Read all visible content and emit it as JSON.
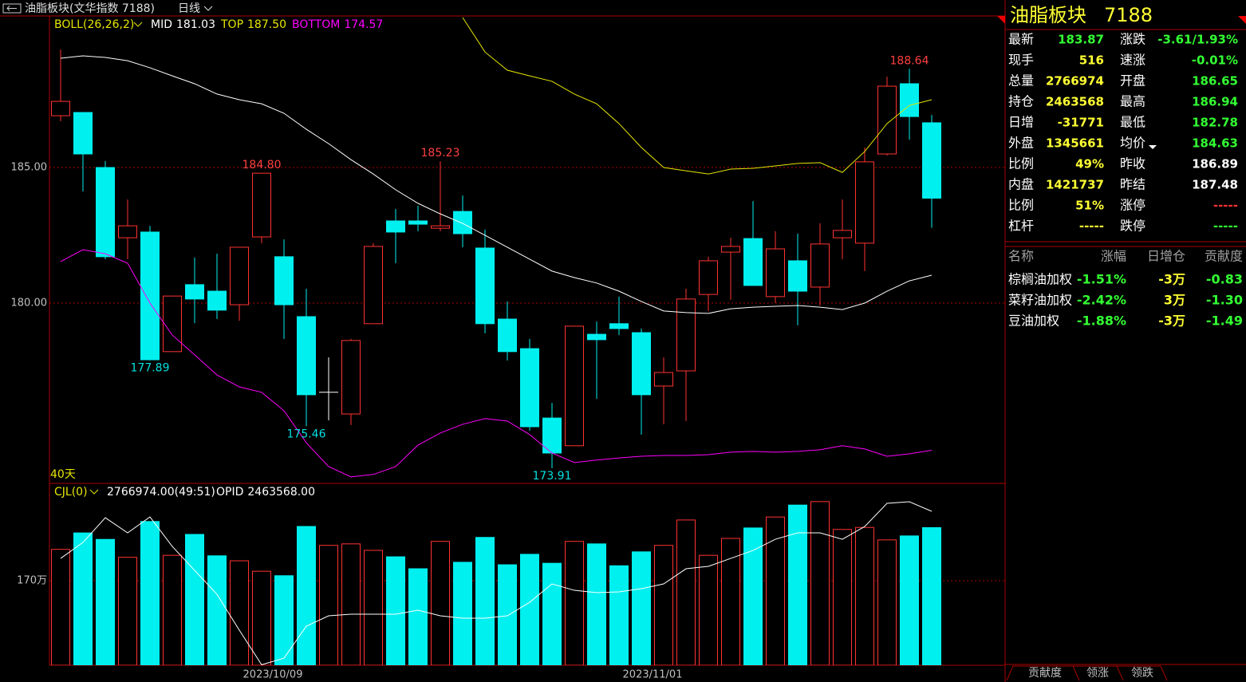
{
  "header": {
    "title": "油脂板块(文华指数 7188)",
    "period": "日线"
  },
  "chart_data": [
    {
      "type": "candlestick",
      "indicator": "BOLL(26,26,2)",
      "period_label": "40天",
      "open": [
        186.91,
        187.03,
        185.0,
        182.41,
        182.62,
        178.21,
        180.68,
        180.44,
        179.94,
        182.44,
        181.71,
        179.5,
        176.71,
        175.91,
        179.24,
        183.03,
        183.03,
        182.76,
        183.38,
        182.03,
        179.41,
        178.32,
        175.76,
        174.74,
        178.85,
        179.24,
        178.91,
        176.94,
        177.5,
        180.32,
        181.88,
        182.38,
        180.24,
        181.56,
        180.59,
        182.41,
        182.21,
        185.5,
        188.09,
        186.65
      ],
      "high": [
        189.35,
        187.03,
        185.24,
        183.82,
        182.85,
        180.26,
        181.68,
        181.82,
        182.06,
        184.8,
        182.35,
        180.53,
        178.0,
        178.68,
        182.21,
        183.47,
        183.59,
        185.23,
        183.97,
        182.71,
        180.06,
        178.68,
        176.32,
        179.15,
        179.32,
        180.24,
        179.06,
        178.0,
        180.53,
        181.71,
        182.41,
        183.76,
        182.65,
        182.56,
        182.94,
        183.82,
        185.74,
        188.35,
        188.64,
        186.94
      ],
      "low": [
        186.71,
        184.12,
        181.62,
        181.62,
        177.89,
        178.21,
        179.26,
        179.41,
        179.35,
        182.21,
        178.68,
        175.46,
        175.68,
        175.5,
        179.24,
        181.47,
        182.65,
        182.65,
        182.06,
        178.88,
        177.88,
        175.29,
        173.91,
        174.74,
        176.47,
        178.82,
        175.15,
        175.53,
        175.65,
        179.71,
        180.12,
        180.65,
        180.0,
        179.18,
        179.91,
        181.62,
        181.18,
        185.44,
        186.03,
        182.78
      ],
      "close": [
        187.44,
        185.5,
        181.71,
        182.85,
        177.91,
        180.26,
        180.15,
        179.74,
        182.06,
        184.79,
        179.94,
        176.62,
        176.71,
        178.62,
        182.09,
        182.62,
        182.91,
        182.85,
        182.56,
        179.24,
        178.21,
        175.44,
        174.47,
        179.15,
        178.65,
        179.06,
        176.62,
        177.44,
        180.15,
        181.56,
        182.09,
        180.65,
        182.0,
        180.44,
        182.18,
        182.68,
        185.21,
        188.0,
        186.88,
        183.87
      ],
      "up_color": "#ff3232",
      "down_color": "#00f0f0",
      "flat_color": "#ffffff",
      "series": [
        {
          "name": "MID",
          "legend_label": "181.03",
          "color": "#ffffff",
          "values": [
            189.03,
            189.12,
            189.06,
            188.94,
            188.68,
            188.38,
            188.09,
            187.71,
            187.5,
            187.35,
            187.0,
            186.41,
            185.88,
            185.29,
            184.76,
            184.18,
            183.68,
            183.29,
            182.94,
            182.5,
            182.06,
            181.62,
            181.18,
            180.94,
            180.74,
            180.44,
            180.06,
            179.71,
            179.65,
            179.62,
            179.79,
            179.85,
            179.88,
            179.91,
            179.85,
            179.76,
            180.0,
            180.44,
            180.82,
            181.03
          ]
        },
        {
          "name": "TOP",
          "legend_label": "187.50",
          "color": "#e6e600",
          "values": [
            null,
            null,
            null,
            null,
            null,
            null,
            null,
            null,
            null,
            null,
            null,
            null,
            null,
            null,
            null,
            null,
            null,
            null,
            190.53,
            189.26,
            188.59,
            188.38,
            188.18,
            187.71,
            187.35,
            186.62,
            185.74,
            185.0,
            184.88,
            184.76,
            184.94,
            184.97,
            185.06,
            185.15,
            185.18,
            184.82,
            185.59,
            186.62,
            187.29,
            187.5
          ]
        },
        {
          "name": "BOTTOM",
          "legend_label": "174.57",
          "color": "#ff00ff",
          "values": [
            181.53,
            181.97,
            181.82,
            181.47,
            180.0,
            178.82,
            178.09,
            177.35,
            176.91,
            176.71,
            176.03,
            174.85,
            173.97,
            173.59,
            173.68,
            173.97,
            174.76,
            175.21,
            175.53,
            175.74,
            175.65,
            175.15,
            174.47,
            174.12,
            174.21,
            174.29,
            174.35,
            174.38,
            174.38,
            174.41,
            174.5,
            174.53,
            174.5,
            174.53,
            174.59,
            174.74,
            174.62,
            174.35,
            174.44,
            174.57
          ]
        }
      ],
      "ylim": [
        173.38,
        190.59
      ],
      "yticks": [
        {
          "value": 180,
          "label": "180.00"
        },
        {
          "value": 185,
          "label": "185.00"
        }
      ],
      "grid": true,
      "high_labels": [
        {
          "value": 184.8,
          "label": "184.80"
        },
        {
          "value": 185.23,
          "label": "185.23"
        },
        {
          "value": 188.64,
          "label": "188.64"
        }
      ],
      "low_labels": [
        {
          "value": 177.89,
          "label": "177.89"
        },
        {
          "value": 175.46,
          "label": "175.46"
        },
        {
          "value": 173.91,
          "label": "173.91"
        }
      ]
    },
    {
      "type": "bar",
      "indicator": "CJL(0)",
      "categories": [
        null,
        null,
        null,
        null,
        null,
        null,
        null,
        null,
        null,
        null,
        "2023/10/09",
        null,
        null,
        null,
        null,
        null,
        null,
        null,
        null,
        null,
        null,
        null,
        null,
        null,
        null,
        null,
        null,
        "2023/11/01",
        null,
        null,
        null,
        null,
        null,
        null,
        null,
        null,
        null,
        null,
        null,
        null
      ],
      "series": [
        {
          "legend_label": "2766974.00(49:51)",
          "values": [
            2330000,
            2660000,
            2530000,
            2170000,
            2890000,
            2210000,
            2630000,
            2200000,
            2100000,
            1890000,
            1800000,
            2790000,
            2410000,
            2440000,
            2310000,
            2180000,
            1940000,
            2490000,
            2070000,
            2570000,
            2020000,
            2230000,
            2050000,
            2490000,
            2440000,
            2000000,
            2280000,
            2410000,
            2920000,
            2210000,
            2550000,
            2760000,
            2980000,
            3220000,
            3290000,
            2730000,
            2770000,
            2520000,
            2600000,
            2766974
          ]
        },
        {
          "name": "OPID",
          "legend_label": "2463568.00",
          "type": "line",
          "axis": "y2",
          "color": "#ffffff",
          "values": [
            2375000,
            2405000,
            2451500,
            2423000,
            2453000,
            2397500,
            2352500,
            2307500,
            2240000,
            2175000,
            2187500,
            2247500,
            2267000,
            2270000,
            2270000,
            2270000,
            2277500,
            2267000,
            2262500,
            2262500,
            2267000,
            2292500,
            2327000,
            2315000,
            2310500,
            2312000,
            2318000,
            2327000,
            2355500,
            2360000,
            2375000,
            2390000,
            2411000,
            2423000,
            2423000,
            2411000,
            2435000,
            2478500,
            2481500,
            2463568
          ]
        }
      ],
      "ylim": [
        0,
        3640000
      ],
      "yticks": [
        {
          "value": 1700000,
          "label": "170万"
        }
      ],
      "y2lim": [
        2174068,
        2514568
      ],
      "grid": true
    }
  ],
  "quote": {
    "name": "油脂板块",
    "code": "7188",
    "rows": [
      [
        {
          "label": "最新",
          "value": "183.87",
          "color": "#33ff33"
        },
        {
          "label": "涨跌",
          "value": "-3.61/1.93%",
          "color": "#33ff33"
        }
      ],
      [
        {
          "label": "现手",
          "value": "516",
          "color": "#ffff33"
        },
        {
          "label": "速涨",
          "value": "-0.01%",
          "color": "#33ff33"
        }
      ],
      [
        {
          "label": "总量",
          "value": "2766974",
          "color": "#ffff33"
        },
        {
          "label": "开盘",
          "value": "186.65",
          "color": "#33ff33"
        }
      ],
      [
        {
          "label": "持仓",
          "value": "2463568",
          "color": "#ffff33"
        },
        {
          "label": "最高",
          "value": "186.94",
          "color": "#33ff33"
        }
      ],
      [
        {
          "label": "日增",
          "value": "-31771",
          "color": "#ffff33"
        },
        {
          "label": "最低",
          "value": "182.78",
          "color": "#33ff33"
        }
      ],
      [
        {
          "label": "外盘",
          "value": "1345661",
          "color": "#ffff33"
        },
        {
          "label": "均价",
          "value": "184.63",
          "color": "#33ff33"
        }
      ],
      [
        {
          "label": "比例",
          "value": "49%",
          "color": "#ffff33"
        },
        {
          "label": "昨收",
          "value": "186.89",
          "color": "#ffffff"
        }
      ],
      [
        {
          "label": "内盘",
          "value": "1421737",
          "color": "#ffff33"
        },
        {
          "label": "昨结",
          "value": "187.48",
          "color": "#ffffff"
        }
      ],
      [
        {
          "label": "比例",
          "value": "51%",
          "color": "#ffff33"
        },
        {
          "label": "涨停",
          "value": "-----",
          "color": "#ff3232"
        }
      ],
      [
        {
          "label": "杠杆",
          "value": "-----",
          "color": "#ffff33"
        },
        {
          "label": "跌停",
          "value": "-----",
          "color": "#33ff33"
        }
      ]
    ]
  },
  "components": {
    "columns": [
      "名称",
      "涨幅",
      "日增仓",
      "贡献度"
    ],
    "rows": [
      [
        "棕榈油加权",
        "-1.51%",
        "-3万",
        "-0.83"
      ],
      [
        "菜籽油加权",
        "-2.42%",
        "3万",
        "-1.30"
      ],
      [
        "豆油加权",
        "-1.88%",
        "-3万",
        "-1.49"
      ]
    ]
  },
  "tabs": [
    "贡献度",
    "领涨",
    "领跌"
  ]
}
